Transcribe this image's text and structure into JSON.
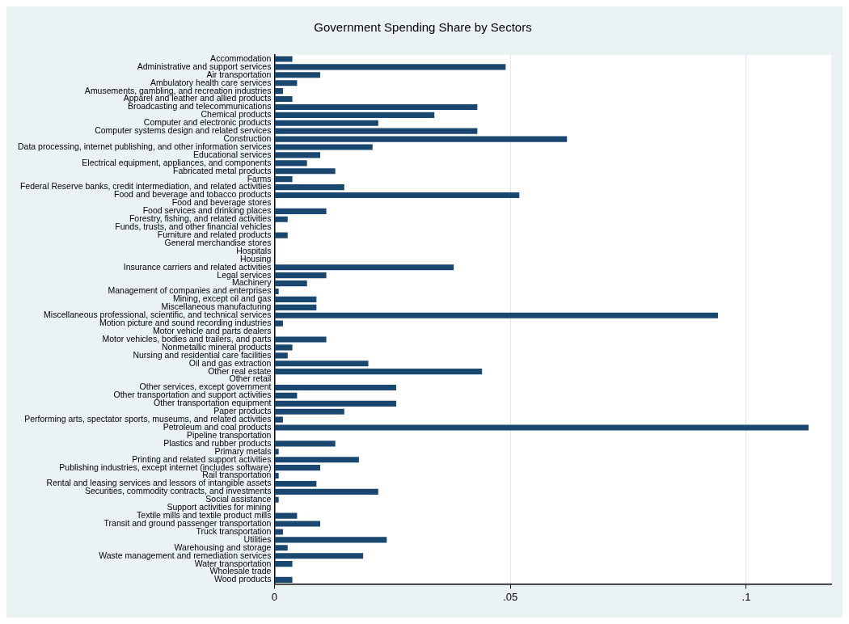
{
  "chart_data": {
    "type": "bar",
    "orientation": "horizontal",
    "title": "Government Spending Share by Sectors",
    "categories": [
      "Accommodation",
      "Administrative and support services",
      "Air transportation",
      "Ambulatory health care services",
      "Amusements, gambling, and recreation industries",
      "Apparel and leather and allied products",
      "Broadcasting and telecommunications",
      "Chemical products",
      "Computer and electronic products",
      "Computer systems design and related services",
      "Construction",
      "Data processing, internet publishing, and other information services",
      "Educational services",
      "Electrical equipment, appliances, and components",
      "Fabricated metal products",
      "Farms",
      "Federal Reserve banks, credit intermediation, and related activities",
      "Food and beverage and tobacco products",
      "Food and beverage stores",
      "Food services and drinking places",
      "Forestry, fishing, and related activities",
      "Funds, trusts, and other financial vehicles",
      "Furniture and related products",
      "General merchandise stores",
      "Hospitals",
      "Housing",
      "Insurance carriers and related activities",
      "Legal services",
      "Machinery",
      "Management of companies and enterprises",
      "Mining, except oil and gas",
      "Miscellaneous manufacturing",
      "Miscellaneous professional, scientific, and technical services",
      "Motion picture and sound recording industries",
      "Motor vehicle and parts dealers",
      "Motor vehicles, bodies and trailers, and parts",
      "Nonmetallic mineral products",
      "Nursing and residential care facilities",
      "Oil and gas extraction",
      "Other real estate",
      "Other retail",
      "Other services, except government",
      "Other transportation and support activities",
      "Other transportation equipment",
      "Paper products",
      "Performing arts, spectator sports, museums, and related activities",
      "Petroleum and coal products",
      "Pipeline transportation",
      "Plastics and rubber products",
      "Primary metals",
      "Printing and related support activities",
      "Publishing industries, except internet (includes software)",
      "Rail transportation",
      "Rental and leasing services and lessors of intangible assets",
      "Securities, commodity contracts, and investments",
      "Social assistance",
      "Support activities for mining",
      "Textile mills and textile product mills",
      "Transit and ground passenger transportation",
      "Truck transportation",
      "Utilities",
      "Warehousing and storage",
      "Waste management and remediation services",
      "Water transportation",
      "Wholesale trade",
      "Wood products"
    ],
    "values": [
      0.0038,
      0.049,
      0.0097,
      0.0048,
      0.0018,
      0.0038,
      0.043,
      0.0339,
      0.022,
      0.043,
      0.062,
      0.0208,
      0.0097,
      0.0069,
      0.0129,
      0.0038,
      0.0148,
      0.0519,
      0,
      0.011,
      0.0028,
      0,
      0.0028,
      0,
      0,
      0,
      0.038,
      0.011,
      0.0069,
      0.0009,
      0.0089,
      0.0089,
      0.094,
      0.0018,
      0,
      0.011,
      0.0038,
      0.0028,
      0.0199,
      0.044,
      0,
      0.0258,
      0.0048,
      0.0258,
      0.0148,
      0.0018,
      0.1132,
      0,
      0.0129,
      0.0009,
      0.0179,
      0.0097,
      0.0009,
      0.0089,
      0.022,
      0.0009,
      0,
      0.0048,
      0.0097,
      0.0018,
      0.0238,
      0.0028,
      0.0188,
      0.0038,
      0,
      0.0038
    ],
    "color": "#1a476f",
    "xlim": [
      0,
      0.118
    ],
    "xticks": [
      0,
      {
        "value": 0.05,
        "label": ".05"
      },
      {
        "value": 0.1,
        "label": ".1"
      }
    ],
    "grid": "x",
    "legend": false
  }
}
